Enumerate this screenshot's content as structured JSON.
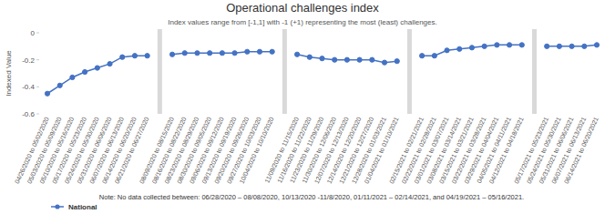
{
  "chart_data": {
    "type": "line",
    "title": "Operational challenges index",
    "subtitle": "Index values range from [-1,1] with -1 (+1) representing the most (least) challenges.",
    "y_label": "Indexed Value",
    "note": "Note: No data collected between: 06/28/2020 – 08/08/2020, 10/13/2020 -11/8/2020, 01/11/2021 – 02/14/2021, and 04/19/2021 – 05/16/2021.",
    "categories": [
      "04/26/2020 to 05/02/2020",
      "05/03/2020 to 05/09/2020",
      "05/10/2020 to 05/16/2020",
      "05/17/2020 to 05/23/2020",
      "05/24/2020 to 05/30/2020",
      "05/31/2020 to 06/06/2020",
      "06/07/2020 to 06/13/2020",
      "06/14/2020 to 06/20/2020",
      "06/21/2020 to 06/27/2020",
      null,
      "08/09/2020 to 08/15/2020",
      "08/16/2020 to 08/22/2020",
      "08/23/2020 to 08/29/2020",
      "08/30/2020 to 09/05/2020",
      "09/06/2020 to 09/12/2020",
      "09/13/2020 to 09/19/2020",
      "09/20/2020 to 09/26/2020",
      "09/27/2020 to 10/03/2020",
      "10/04/2020 to 10/10/2020",
      null,
      "11/09/2020 to 11/15/2020",
      "11/16/2020 to 11/22/2020",
      "11/23/2020 to 11/29/2020",
      "11/30/2020 to 12/06/2020",
      "12/07/2020 to 12/13/2020",
      "12/14/2020 to 12/20/2020",
      "12/21/2020 to 12/27/2020",
      "12/28/2020 to 01/03/2021",
      "01/04/2021 to 01/10/2021",
      null,
      "02/15/2021 to 02/21/2021",
      "02/22/2021 to 02/28/2021",
      "03/01/2021 to 03/07/2021",
      "03/08/2021 to 03/14/2021",
      "03/15/2021 to 03/21/2021",
      "03/22/2021 to 03/28/2021",
      "03/29/2021 to 04/04/2021",
      "04/05/2021 to 04/11/2021",
      "04/12/2021 to 04/18/2021",
      null,
      "05/17/2021 to 05/23/2021",
      "05/24/2021 to 05/30/2021",
      "05/31/2021 to 06/06/2021",
      "06/07/2021 to 06/13/2021",
      "06/14/2021 to 06/20/2021"
    ],
    "series": [
      {
        "name": "National",
        "color": "#4472c4",
        "marker": "circle",
        "values": [
          -0.45,
          -0.39,
          -0.33,
          -0.29,
          -0.26,
          -0.23,
          -0.18,
          -0.17,
          -0.17,
          null,
          -0.16,
          -0.15,
          -0.15,
          -0.15,
          -0.15,
          -0.15,
          -0.14,
          -0.14,
          -0.14,
          null,
          -0.16,
          -0.18,
          -0.19,
          -0.2,
          -0.2,
          -0.2,
          -0.2,
          -0.22,
          -0.21,
          null,
          -0.17,
          -0.17,
          -0.13,
          -0.12,
          -0.11,
          -0.1,
          -0.09,
          -0.09,
          -0.09,
          null,
          -0.1,
          -0.1,
          -0.1,
          -0.1,
          -0.09
        ]
      }
    ],
    "ylim": [
      -0.6,
      0
    ],
    "yticks": [
      0,
      -0.2,
      -0.4,
      -0.6
    ],
    "grid": false,
    "legend": "bottom-left"
  }
}
